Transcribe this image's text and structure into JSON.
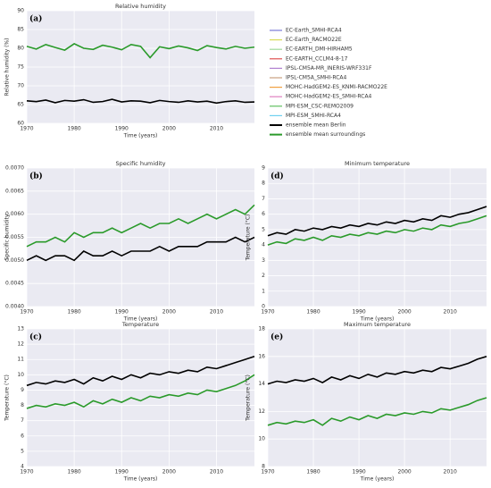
{
  "legend": {
    "items": [
      {
        "name": "EC-Earth_SMHI-RCA4",
        "color": "#7b7bd9"
      },
      {
        "name": "EC-Earth_RACMO22E",
        "color": "#d8dc5a"
      },
      {
        "name": "EC-EARTH_DMI-HIRHAM5",
        "color": "#9fd89a"
      },
      {
        "name": "EC-EARTH_CCLM4-8-17",
        "color": "#e05050"
      },
      {
        "name": "IPSL-CM5A-MR_INERIS-WRF331F",
        "color": "#b080d0"
      },
      {
        "name": "IPSL-CM5A_SMHI-RCA4",
        "color": "#c8a080"
      },
      {
        "name": "MOHC-HadGEM2-ES_KNMI-RACMO22E",
        "color": "#f0a040"
      },
      {
        "name": "MOHC-HadGEM2-ES_SMHI-RCA4",
        "color": "#e080c0"
      },
      {
        "name": "MPI-ESM_CSC-REMO2009",
        "color": "#60c060"
      },
      {
        "name": "MPI-ESM_SMHI-RCA4",
        "color": "#70d0f0"
      }
    ]
  },
  "chart_data": [
    {
      "type": "line",
      "label": "(a)",
      "title": "Relative humidity",
      "xlabel": "Time (years)",
      "ylabel": "Relative humidity (%)",
      "x": [
        1970,
        1972,
        1974,
        1976,
        1978,
        1980,
        1982,
        1984,
        1986,
        1988,
        1990,
        1992,
        1994,
        1996,
        1998,
        2000,
        2002,
        2004,
        2006,
        2008,
        2010,
        2012,
        2014,
        2016,
        2018
      ],
      "xlim": [
        1970,
        2018
      ],
      "xticks": [
        1970,
        1980,
        1990,
        2000,
        2010
      ],
      "ylim": [
        60,
        90
      ],
      "yticks": [
        60,
        65,
        70,
        75,
        80,
        85,
        90
      ],
      "series": [
        {
          "name": "ensemble mean Berlin",
          "color": "#000000",
          "values": [
            66.0,
            65.8,
            66.2,
            65.5,
            66.1,
            65.9,
            66.3,
            65.6,
            65.8,
            66.4,
            65.7,
            66.0,
            65.9,
            65.5,
            66.1,
            65.8,
            65.6,
            66.0,
            65.7,
            65.9,
            65.4,
            65.8,
            66.0,
            65.6,
            65.7
          ]
        },
        {
          "name": "ensemble mean surroundings",
          "color": "#2a9a2a",
          "values": [
            80.5,
            79.8,
            81.0,
            80.2,
            79.5,
            81.2,
            80.0,
            79.7,
            80.8,
            80.3,
            79.6,
            81.0,
            80.5,
            77.5,
            80.4,
            79.9,
            80.6,
            80.1,
            79.4,
            80.7,
            80.2,
            79.8,
            80.5,
            80.0,
            80.3
          ]
        }
      ]
    },
    {
      "type": "line",
      "label": "(b)",
      "title": "Specific humidity",
      "xlabel": "Time (years)",
      "ylabel": "Specific humidity",
      "x": [
        1970,
        1972,
        1974,
        1976,
        1978,
        1980,
        1982,
        1984,
        1986,
        1988,
        1990,
        1992,
        1994,
        1996,
        1998,
        2000,
        2002,
        2004,
        2006,
        2008,
        2010,
        2012,
        2014,
        2016,
        2018
      ],
      "xlim": [
        1970,
        2018
      ],
      "xticks": [
        1970,
        1980,
        1990,
        2000,
        2010
      ],
      "ylim": [
        0.004,
        0.007
      ],
      "yticks": [
        {
          "value": 0.004,
          "label": "0.0040"
        },
        {
          "value": 0.0045,
          "label": "0.0045"
        },
        {
          "value": 0.005,
          "label": "0.0050"
        },
        {
          "value": 0.0055,
          "label": "0.0055"
        },
        {
          "value": 0.006,
          "label": "0.0060"
        },
        {
          "value": 0.0065,
          "label": "0.0065"
        },
        {
          "value": 0.007,
          "label": "0.0070"
        }
      ],
      "series": [
        {
          "name": "ensemble mean Berlin",
          "color": "#000000",
          "values": [
            0.005,
            0.0051,
            0.005,
            0.0051,
            0.0051,
            0.005,
            0.0052,
            0.0051,
            0.0051,
            0.0052,
            0.0051,
            0.0052,
            0.0052,
            0.0052,
            0.0053,
            0.0052,
            0.0053,
            0.0053,
            0.0053,
            0.0054,
            0.0054,
            0.0054,
            0.0055,
            0.0054,
            0.0055
          ]
        },
        {
          "name": "ensemble mean surroundings",
          "color": "#2a9a2a",
          "values": [
            0.0053,
            0.0054,
            0.0054,
            0.0055,
            0.0054,
            0.0056,
            0.0055,
            0.0056,
            0.0056,
            0.0057,
            0.0056,
            0.0057,
            0.0058,
            0.0057,
            0.0058,
            0.0058,
            0.0059,
            0.0058,
            0.0059,
            0.006,
            0.0059,
            0.006,
            0.0061,
            0.006,
            0.0062
          ]
        }
      ]
    },
    {
      "type": "line",
      "label": "(d)",
      "title": "Minimum temperature",
      "xlabel": "Time (years)",
      "ylabel": "Temperature (°C)",
      "x": [
        1970,
        1972,
        1974,
        1976,
        1978,
        1980,
        1982,
        1984,
        1986,
        1988,
        1990,
        1992,
        1994,
        1996,
        1998,
        2000,
        2002,
        2004,
        2006,
        2008,
        2010,
        2012,
        2014,
        2016,
        2018
      ],
      "xlim": [
        1970,
        2018
      ],
      "xticks": [
        1970,
        1980,
        1990,
        2000,
        2010
      ],
      "ylim": [
        0,
        9
      ],
      "yticks": [
        0,
        1,
        2,
        3,
        4,
        5,
        6,
        7,
        8,
        9
      ],
      "series": [
        {
          "name": "ensemble mean Berlin",
          "color": "#000000",
          "values": [
            4.6,
            4.8,
            4.7,
            5.0,
            4.9,
            5.1,
            5.0,
            5.2,
            5.1,
            5.3,
            5.2,
            5.4,
            5.3,
            5.5,
            5.4,
            5.6,
            5.5,
            5.7,
            5.6,
            5.9,
            5.8,
            6.0,
            6.1,
            6.3,
            6.5
          ]
        },
        {
          "name": "ensemble mean surroundings",
          "color": "#2a9a2a",
          "values": [
            4.0,
            4.2,
            4.1,
            4.4,
            4.3,
            4.5,
            4.3,
            4.6,
            4.5,
            4.7,
            4.6,
            4.8,
            4.7,
            4.9,
            4.8,
            5.0,
            4.9,
            5.1,
            5.0,
            5.3,
            5.2,
            5.4,
            5.5,
            5.7,
            5.9
          ]
        }
      ]
    },
    {
      "type": "line",
      "label": "(c)",
      "title": "Temperature",
      "xlabel": "Time (years)",
      "ylabel": "Temperature (°C)",
      "x": [
        1970,
        1972,
        1974,
        1976,
        1978,
        1980,
        1982,
        1984,
        1986,
        1988,
        1990,
        1992,
        1994,
        1996,
        1998,
        2000,
        2002,
        2004,
        2006,
        2008,
        2010,
        2012,
        2014,
        2016,
        2018
      ],
      "xlim": [
        1970,
        2018
      ],
      "xticks": [
        1970,
        1980,
        1990,
        2000,
        2010
      ],
      "ylim": [
        4,
        13
      ],
      "yticks": [
        4,
        5,
        6,
        7,
        8,
        9,
        10,
        11,
        12,
        13
      ],
      "series": [
        {
          "name": "ensemble mean Berlin",
          "color": "#000000",
          "values": [
            9.3,
            9.5,
            9.4,
            9.6,
            9.5,
            9.7,
            9.4,
            9.8,
            9.6,
            9.9,
            9.7,
            10.0,
            9.8,
            10.1,
            10.0,
            10.2,
            10.1,
            10.3,
            10.2,
            10.5,
            10.4,
            10.6,
            10.8,
            11.0,
            11.2
          ]
        },
        {
          "name": "ensemble mean surroundings",
          "color": "#2a9a2a",
          "values": [
            7.8,
            8.0,
            7.9,
            8.1,
            8.0,
            8.2,
            7.9,
            8.3,
            8.1,
            8.4,
            8.2,
            8.5,
            8.3,
            8.6,
            8.5,
            8.7,
            8.6,
            8.8,
            8.7,
            9.0,
            8.9,
            9.1,
            9.3,
            9.6,
            10.0
          ]
        }
      ]
    },
    {
      "type": "line",
      "label": "(e)",
      "title": "Maximum temperature",
      "xlabel": "Time (years)",
      "ylabel": "Temperature (°C)",
      "x": [
        1970,
        1972,
        1974,
        1976,
        1978,
        1980,
        1982,
        1984,
        1986,
        1988,
        1990,
        1992,
        1994,
        1996,
        1998,
        2000,
        2002,
        2004,
        2006,
        2008,
        2010,
        2012,
        2014,
        2016,
        2018
      ],
      "xlim": [
        1970,
        2018
      ],
      "xticks": [
        1970,
        1980,
        1990,
        2000,
        2010
      ],
      "ylim": [
        8,
        18
      ],
      "yticks": [
        8,
        10,
        12,
        14,
        16,
        18
      ],
      "series": [
        {
          "name": "ensemble mean Berlin",
          "color": "#000000",
          "values": [
            14.0,
            14.2,
            14.1,
            14.3,
            14.2,
            14.4,
            14.1,
            14.5,
            14.3,
            14.6,
            14.4,
            14.7,
            14.5,
            14.8,
            14.7,
            14.9,
            14.8,
            15.0,
            14.9,
            15.2,
            15.1,
            15.3,
            15.5,
            15.8,
            16.0
          ]
        },
        {
          "name": "ensemble mean surroundings",
          "color": "#2a9a2a",
          "values": [
            11.0,
            11.2,
            11.1,
            11.3,
            11.2,
            11.4,
            11.0,
            11.5,
            11.3,
            11.6,
            11.4,
            11.7,
            11.5,
            11.8,
            11.7,
            11.9,
            11.8,
            12.0,
            11.9,
            12.2,
            12.1,
            12.3,
            12.5,
            12.8,
            13.0
          ]
        }
      ]
    }
  ]
}
